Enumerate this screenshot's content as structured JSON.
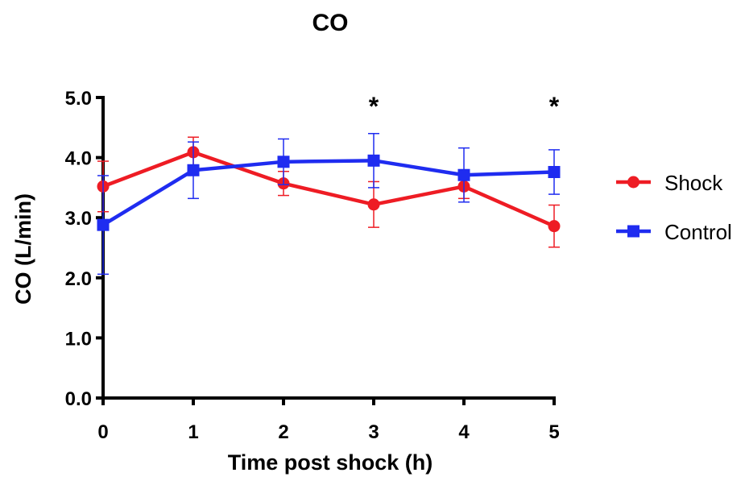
{
  "chart_data": {
    "type": "line",
    "title": "CO",
    "xlabel": "Time post shock (h)",
    "ylabel": "CO (L/min)",
    "x": [
      0,
      1,
      2,
      3,
      4,
      5
    ],
    "x_tick_labels": [
      "0",
      "1",
      "2",
      "3",
      "4",
      "5"
    ],
    "xlim": [
      0,
      5
    ],
    "ylim": [
      0,
      5
    ],
    "y_ticks": [
      0,
      1,
      2,
      3,
      4,
      5
    ],
    "y_tick_labels": [
      "0.0",
      "1.0",
      "2.0",
      "3.0",
      "4.0",
      "5.0"
    ],
    "grid": false,
    "legend_position": "right",
    "series": [
      {
        "name": "Shock",
        "color": "#ee1c24",
        "marker": "circle",
        "values": [
          3.52,
          4.09,
          3.57,
          3.22,
          3.52,
          2.86
        ],
        "error": [
          0.42,
          0.25,
          0.2,
          0.38,
          0.2,
          0.35
        ]
      },
      {
        "name": "Control",
        "color": "#1f2cf0",
        "marker": "square",
        "values": [
          2.88,
          3.79,
          3.93,
          3.95,
          3.71,
          3.76
        ],
        "error": [
          0.82,
          0.47,
          0.38,
          0.45,
          0.45,
          0.37
        ]
      }
    ],
    "annotations": [
      {
        "x": 3,
        "text": "*"
      },
      {
        "x": 5,
        "text": "*"
      }
    ]
  }
}
